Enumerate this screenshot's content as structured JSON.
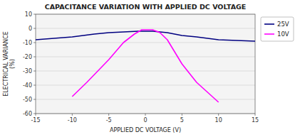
{
  "chart_data": {
    "type": "line",
    "title": "CAPACITANCE VARIATION WITH APPLIED DC VOLTAGE",
    "xlabel": "APPLIED DC VOLTAGE (V)",
    "ylabel": "ELECTRICAL VARIANCE\n(%)",
    "xlim": [
      -15,
      15
    ],
    "ylim": [
      -60,
      10
    ],
    "xticks": [
      -15,
      -10,
      -5,
      0,
      5,
      10,
      15
    ],
    "yticks": [
      -60,
      -50,
      -40,
      -30,
      -20,
      -10,
      0,
      10
    ],
    "grid": true,
    "legend": "right",
    "series": [
      {
        "name": "25V",
        "color": "#000080",
        "x": [
          -15,
          -10,
          -7,
          -5,
          -3,
          -1,
          0,
          1,
          3,
          5,
          7,
          10,
          15
        ],
        "values": [
          -8,
          -6,
          -4,
          -3,
          -2.5,
          -2,
          -2,
          -2,
          -3,
          -5,
          -6,
          -8,
          -9
        ]
      },
      {
        "name": "10V",
        "color": "#FF00FF",
        "x": [
          -10,
          -8,
          -5,
          -3,
          -1.5,
          -0.5,
          0,
          1,
          2,
          3,
          5,
          7,
          10
        ],
        "values": [
          -48,
          -38,
          -22,
          -10,
          -4,
          -1,
          -1,
          -1,
          -3,
          -8,
          -25,
          -38,
          -52
        ]
      }
    ]
  }
}
